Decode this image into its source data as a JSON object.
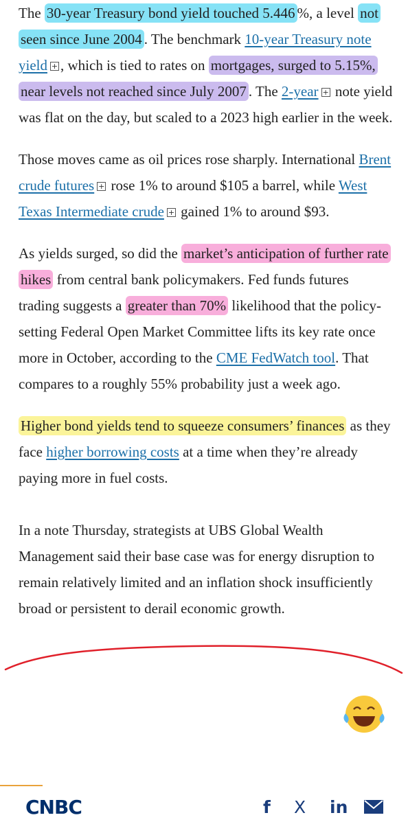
{
  "article": {
    "paragraphs": [
      [
        "The ",
        "30-year Treasury bond yield touched 5.446",
        "%, a level ",
        "not seen since June 2004",
        ". The benchmark ",
        "10-year Treasury note yield",
        ", which is tied to rates on ",
        "mortgages, surged to 5.15%, near levels not reached since July 2007",
        ". The ",
        "2-year",
        " note yield was flat on the day, but scaled to a 2023 high earlier in the week."
      ],
      [
        "Those moves came as oil prices rose sharply. International ",
        "Brent crude futures",
        " rose 1% to around $105 a barrel, while ",
        "West Texas Intermediate crude",
        " gained 1% to around $93."
      ],
      [
        "As yields surged, so did the ",
        "market’s anticipation of further rate hikes",
        " from central bank policymakers. Fed funds futures trading suggests a ",
        "greater than 70%",
        " likelihood that the policy-setting Federal Open Market Committee lifts its key rate once more in October, according to the ",
        "CME FedWatch tool",
        ". That compares to a roughly 55% probability just a week ago."
      ],
      [
        "Higher bond yields tend to squeeze consumers’ finances",
        " as they face ",
        "higher borrowing costs",
        " at a time when they’re already paying more in fuel costs."
      ],
      [
        "In a note Thursday, strategists at UBS Global Wealth Management said their base case was for energy disruption to remain relatively limited and an inflation shock insufficiently broad or persistent to derail economic growth."
      ]
    ]
  },
  "footer": {
    "logo": "CNBC",
    "share": [
      "f",
      "X",
      "in"
    ]
  }
}
